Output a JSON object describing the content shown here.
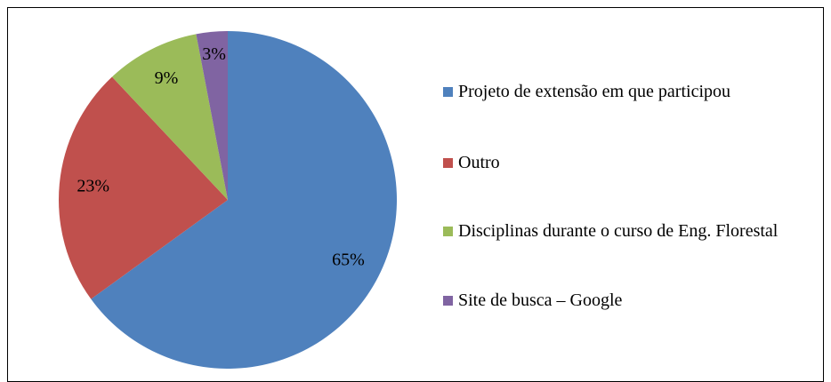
{
  "chart_data": {
    "type": "pie",
    "categories": [
      "Projeto de extensão em que participou",
      "Outro",
      "Disciplinas durante o curso de Eng. Florestal",
      "Site de busca – Google"
    ],
    "values": [
      65,
      23,
      9,
      3
    ],
    "value_labels": [
      "65%",
      "23%",
      "9%",
      "3%"
    ],
    "colors": [
      "#4f81bd",
      "#c0504d",
      "#9bbb59",
      "#8064a2"
    ],
    "legend": "right"
  }
}
